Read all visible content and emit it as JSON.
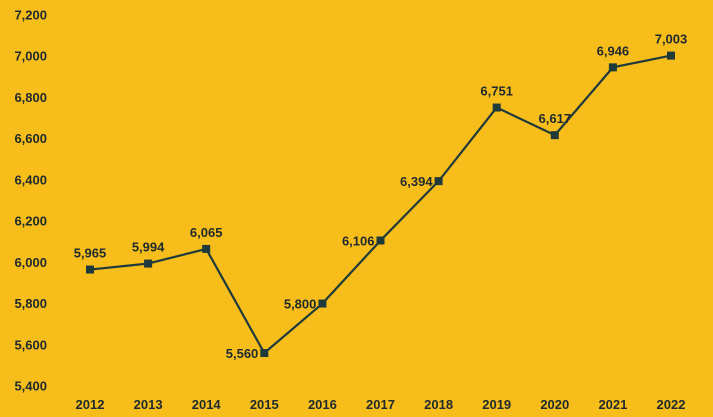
{
  "chart_data": {
    "type": "line",
    "title": "",
    "xlabel": "",
    "ylabel": "",
    "categories": [
      "2012",
      "2013",
      "2014",
      "2015",
      "2016",
      "2017",
      "2018",
      "2019",
      "2020",
      "2021",
      "2022"
    ],
    "series": [
      {
        "values": [
          5965,
          5994,
          6065,
          5560,
          5800,
          6106,
          6394,
          6751,
          6617,
          6946,
          7003
        ],
        "labels": [
          "5,965",
          "5,994",
          "6,065",
          "5,560",
          "5,800",
          "6,106",
          "6,394",
          "6,751",
          "6,617",
          "6,946",
          "7,003"
        ]
      }
    ],
    "ylim": [
      5400,
      7200
    ],
    "y_ticks": [
      5400,
      5600,
      5800,
      6000,
      6200,
      6400,
      6600,
      6800,
      7000,
      7200
    ],
    "y_tick_labels": [
      "5,400",
      "5,600",
      "5,800",
      "6,000",
      "6,200",
      "6,400",
      "6,600",
      "6,800",
      "7,000",
      "7,200"
    ],
    "grid": false,
    "legend": "none",
    "marker": "square",
    "colors": {
      "background": "#F7BD1B",
      "line": "#1F3A3A",
      "marker": "#1F3A3A",
      "text": "#1E2A2E"
    }
  }
}
